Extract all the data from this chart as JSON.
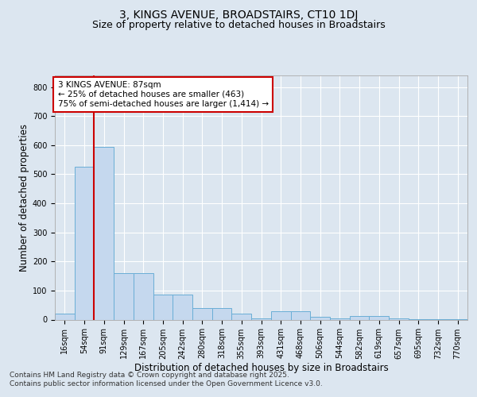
{
  "title_line1": "3, KINGS AVENUE, BROADSTAIRS, CT10 1DJ",
  "title_line2": "Size of property relative to detached houses in Broadstairs",
  "xlabel": "Distribution of detached houses by size in Broadstairs",
  "ylabel": "Number of detached properties",
  "bin_labels": [
    "16sqm",
    "54sqm",
    "91sqm",
    "129sqm",
    "167sqm",
    "205sqm",
    "242sqm",
    "280sqm",
    "318sqm",
    "355sqm",
    "393sqm",
    "431sqm",
    "468sqm",
    "506sqm",
    "544sqm",
    "582sqm",
    "619sqm",
    "657sqm",
    "695sqm",
    "732sqm",
    "770sqm"
  ],
  "bar_values": [
    20,
    525,
    595,
    160,
    160,
    85,
    85,
    40,
    40,
    20,
    5,
    30,
    30,
    10,
    5,
    13,
    13,
    4,
    2,
    2,
    1
  ],
  "bar_color": "#c5d8ee",
  "bar_edge_color": "#6aaed6",
  "background_color": "#dce6f0",
  "grid_color": "#ffffff",
  "vline_color": "#cc0000",
  "vline_pos": 1.5,
  "annotation_text": "3 KINGS AVENUE: 87sqm\n← 25% of detached houses are smaller (463)\n75% of semi-detached houses are larger (1,414) →",
  "annotation_box_facecolor": "#ffffff",
  "annotation_box_edgecolor": "#cc0000",
  "ylim": [
    0,
    840
  ],
  "yticks": [
    0,
    100,
    200,
    300,
    400,
    500,
    600,
    700,
    800
  ],
  "fig_facecolor": "#dce6f0",
  "footer_text": "Contains HM Land Registry data © Crown copyright and database right 2025.\nContains public sector information licensed under the Open Government Licence v3.0.",
  "title_fontsize": 10,
  "subtitle_fontsize": 9,
  "axis_label_fontsize": 8.5,
  "tick_fontsize": 7,
  "annotation_fontsize": 7.5,
  "footer_fontsize": 6.5
}
